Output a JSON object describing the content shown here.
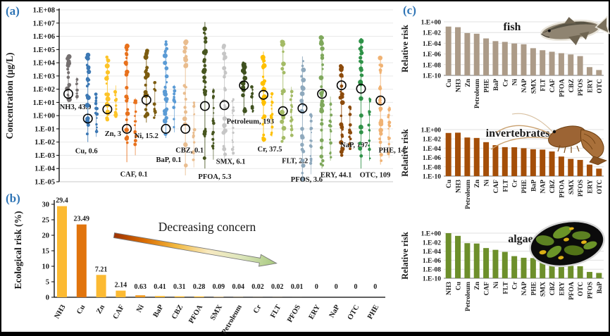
{
  "panels": {
    "a_letter": "(a)",
    "b_letter": "(b)",
    "c_letter": "(c)"
  },
  "chart_data": [
    {
      "id": "concentration",
      "type": "scatter",
      "ylabel": "Concentration (µg/L)",
      "y_axis": {
        "scale": "log",
        "max_exp": 8,
        "min_exp": -5,
        "tick_labels": [
          "1.E+08",
          "1.E+07",
          "1.E+06",
          "1.E+05",
          "1.E+04",
          "1.E+03",
          "1.E+02",
          "1.E+01",
          "1.E+00",
          "1.E-01",
          "1.E-02",
          "1.E-03",
          "1.E-04",
          "1.E-05"
        ]
      },
      "series": [
        {
          "name": "NH3",
          "label": "NH3, 43.9",
          "median": 43.9,
          "min": 10,
          "max": 30000,
          "color": "#757070",
          "label_dx": 10,
          "label_ylog": 0.5
        },
        {
          "name": "Cu",
          "label": "Cu, 0.6",
          "median": 0.6,
          "min": 0.01,
          "max": 40000,
          "color": "#3c78b4",
          "label_dx": -2,
          "label_ylog": -2.85
        },
        {
          "name": "Zn",
          "label": "Zn, 3",
          "median": 3,
          "min": 0.4,
          "max": 30000,
          "color": "#fdc428",
          "label_dx": 8,
          "label_ylog": -1.55
        },
        {
          "name": "CAF",
          "label": "CAF, 0.1",
          "median": 0.1,
          "min": 0.0003,
          "max": 200000,
          "color": "#e8711c",
          "label_dx": 10,
          "label_ylog": -4.6
        },
        {
          "name": "Ni",
          "label": "Ni, 15.2",
          "median": 15.2,
          "min": 0.3,
          "max": 100000,
          "color": "#7c5c10",
          "label_dx": 0,
          "label_ylog": -1.7
        },
        {
          "name": "BaP",
          "label": "BaP, 0.1",
          "median": 0.1,
          "min": 0.02,
          "max": 400000,
          "color": "#5b9bd5",
          "label_dx": 4,
          "label_ylog": -3.5
        },
        {
          "name": "CBZ",
          "label": "CBZ, 0.1",
          "median": 0.1,
          "min": 3e-05,
          "max": 400000,
          "color": "#e9bd8f",
          "label_dx": 6,
          "label_ylog": -2.8
        },
        {
          "name": "PFOA",
          "label": "PFOA, 5.3",
          "median": 5.3,
          "min": 0.0001,
          "max": 12000000,
          "color": "#47551f",
          "label_dx": 14,
          "label_ylog": -4.8
        },
        {
          "name": "SMX",
          "label": "SMX, 6.1",
          "median": 6.1,
          "min": 0.0003,
          "max": 200000,
          "color": "#c6c6c6",
          "label_dx": 9,
          "label_ylog": -3.65
        },
        {
          "name": "Petroleum",
          "label": "Petroleum, 193",
          "median": 193,
          "min": 1,
          "max": 10000,
          "color": "#3f511f",
          "label_dx": 9,
          "label_ylog": -0.6
        },
        {
          "name": "Cr",
          "label": "Cr, 37.5",
          "median": 37.5,
          "min": 0.01,
          "max": 70000,
          "color": "#ffc000",
          "label_dx": 9,
          "label_ylog": -2.7
        },
        {
          "name": "FLT",
          "label": "FLT, 2.2",
          "median": 2.2,
          "min": 0.01,
          "max": 400000,
          "color": "#a4bb66",
          "label_dx": 17,
          "label_ylog": -3.6
        },
        {
          "name": "PFOS",
          "label": "PFOS, 3.6",
          "median": 3.6,
          "min": 1e-05,
          "max": 30000,
          "color": "#8fa9bd",
          "label_dx": 6,
          "label_ylog": -5.0
        },
        {
          "name": "ERY",
          "label": "ERY, 44.1",
          "median": 44.1,
          "min": 0.0001,
          "max": 800000,
          "color": "#7fa85c",
          "label_dx": 20,
          "label_ylog": -4.65
        },
        {
          "name": "NaP",
          "label": "NaP, 197",
          "median": 197,
          "min": 0.001,
          "max": 6000,
          "color": "#8c4a0b",
          "label_dx": 18,
          "label_ylog": -2.4
        },
        {
          "name": "OTC",
          "label": "OTC, 109",
          "median": 109,
          "min": 0.0001,
          "max": 600000,
          "color": "#2f9248",
          "label_dx": 20,
          "label_ylog": -4.65
        },
        {
          "name": "PHE",
          "label": "PHE, 14",
          "median": 14,
          "min": 0.0002,
          "max": 25000,
          "color": "#f0b273",
          "label_dx": 16,
          "label_ylog": -2.8
        }
      ]
    },
    {
      "id": "ecological-risk",
      "type": "bar",
      "ylabel": "Ecological risk (%)",
      "ylim": [
        0,
        30
      ],
      "yticks": [
        0,
        5,
        10,
        15,
        20,
        25,
        30
      ],
      "annotation": "Decreasing concern",
      "categories": [
        "NH3",
        "Cu",
        "Zn",
        "CAF",
        "Ni",
        "BaP",
        "CBZ",
        "PFOA",
        "SMX",
        "Petroleum",
        "Cr",
        "FLT",
        "PFOS",
        "ERY",
        "NaP",
        "OTC",
        "PHE"
      ],
      "values": [
        29.4,
        23.49,
        7.21,
        2.14,
        0.63,
        0.41,
        0.31,
        0.28,
        0.09,
        0.04,
        0.02,
        0.02,
        0.01,
        0,
        0,
        0,
        0
      ],
      "value_labels": [
        "29.4",
        "23.49",
        "7.21",
        "2.14",
        "0.63",
        "0.41",
        "0.31",
        "0.28",
        "0.09",
        "0.04",
        "0.02",
        "0.02",
        "0.01",
        "0",
        "0",
        "0",
        "0"
      ],
      "bar_colors": [
        "#fcba32",
        "#e1740d",
        "#fcba32",
        "#fcba32",
        "#f0991f",
        "#fcba32",
        "#fcba32",
        "#fcba32",
        "#fcba32",
        "#fcba32",
        "#fcba32",
        "#fcba32",
        "#fcba32",
        "#fcba32",
        "#fcba32",
        "#fcba32",
        "#fcba32"
      ],
      "arrow_colors": [
        "#9e3200",
        "#d96a00",
        "#f2b83d",
        "#f7e9c0",
        "#dde6bc",
        "#a6c87e"
      ]
    },
    {
      "id": "fish",
      "type": "bar",
      "log": true,
      "title": "fish",
      "ylabel": "Relative risk",
      "bar_color": "#ac9b88",
      "ytick_labels": [
        "1.E+00",
        "1.E-02",
        "1.E-04",
        "1.E-06",
        "1.E-08",
        "1.E-10"
      ],
      "ylim_exp": [
        0,
        -10
      ],
      "categories": [
        "Cu",
        "NH3",
        "Zn",
        "Petroleum",
        "PHE",
        "BaP",
        "Cr",
        "Ni",
        "NAP",
        "SMX",
        "FLT",
        "CAF",
        "PFOA",
        "CBZ",
        "PFOS",
        "ERY",
        "OTC"
      ],
      "values": [
        0.13,
        0.1,
        0.008,
        0.006,
        0.0008,
        0.00025,
        0.00018,
        9e-05,
        6.5e-05,
        1.2e-05,
        5e-06,
        2.6e-06,
        1.4e-06,
        8e-07,
        4e-07,
        3.5e-09,
        1e-09
      ]
    },
    {
      "id": "invertebrates",
      "type": "bar",
      "log": true,
      "title": "invertebrates",
      "ylabel": "Relative risk",
      "bar_color": "#a44e08",
      "ytick_labels": [
        "1.E+00",
        "1.E-02",
        "1.E-04",
        "1.E-06",
        "1.E-08",
        "1.E-10"
      ],
      "ylim_exp": [
        0,
        -10
      ],
      "categories": [
        "Cu",
        "NH3",
        "Petroleum",
        "Zn",
        "Ni",
        "CAF",
        "FLT",
        "Cr",
        "PHE",
        "BaP",
        "NAP",
        "CBZ",
        "PFOA",
        "SMX",
        "PFOS",
        "ERY",
        "OTC"
      ],
      "values": [
        0.19,
        0.22,
        0.02,
        0.016,
        0.002,
        0.00045,
        0.00017,
        0.00016,
        0.0001,
        6e-05,
        5e-05,
        2e-05,
        1.6e-06,
        5e-07,
        3e-07,
        3e-08,
        4e-09
      ]
    },
    {
      "id": "algae",
      "type": "bar",
      "log": true,
      "title": "algae",
      "ylabel": "Relative risk",
      "bar_color": "#6d8f2b",
      "ytick_labels": [
        "1.E+00",
        "1.E-02",
        "1.E-04",
        "1.E-06",
        "1.E-08",
        "1.E-10"
      ],
      "ylim_exp": [
        0,
        -10
      ],
      "categories": [
        "NH3",
        "Cu",
        "Petroleum",
        "Zn",
        "CAF",
        "Ni",
        "FLT",
        "Cr",
        "NAP",
        "PHE",
        "SMX",
        "CBZ",
        "ERY",
        "PFOA",
        "OTC",
        "PFOS",
        "BaP"
      ],
      "values": [
        1.0,
        0.25,
        0.006,
        0.005,
        0.0005,
        0.0002,
        7e-05,
        8e-06,
        3.5e-06,
        3e-06,
        9e-07,
        2.5e-07,
        6e-08,
        5.5e-08,
        4.5e-08,
        2.5e-09,
        1.5e-09
      ]
    }
  ]
}
